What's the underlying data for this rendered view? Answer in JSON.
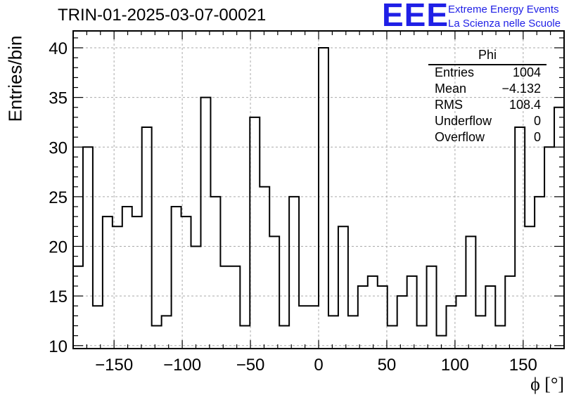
{
  "title": "TRIN-01-2025-03-07-00021",
  "logo": {
    "letters": "EEE",
    "line1": "Extreme Energy Events",
    "line2": "La Scienza nelle Scuole",
    "color": "#1f1fe6"
  },
  "stats_box": {
    "name": "Phi",
    "rows": [
      {
        "label": "Entries",
        "value": "1004"
      },
      {
        "label": "Mean",
        "value": "−4.132"
      },
      {
        "label": "RMS",
        "value": "108.4"
      },
      {
        "label": "Underflow",
        "value": "0"
      },
      {
        "label": "Overflow",
        "value": "0"
      }
    ]
  },
  "chart_data": {
    "type": "histogram",
    "title": "TRIN-01-2025-03-07-00021",
    "xlabel": "ϕ [°]",
    "ylabel": "Entries/bin",
    "xlim": [
      -180,
      180
    ],
    "ylim": [
      9.7,
      41.7
    ],
    "bin_width": 7.2,
    "bin_edges_start": -180,
    "values": [
      18,
      30,
      14,
      23,
      22,
      24,
      23,
      32,
      12,
      13,
      24,
      23,
      20,
      35,
      25,
      18,
      18,
      12,
      33,
      26,
      21,
      12,
      25,
      14,
      14,
      40,
      13,
      22,
      13,
      16,
      17,
      16,
      12,
      15,
      17,
      12,
      18,
      11,
      14,
      15,
      21,
      13,
      16,
      12,
      17,
      32,
      22,
      25,
      30,
      34
    ],
    "x_ticks": [
      -150,
      -100,
      -50,
      0,
      50,
      100,
      150
    ],
    "x_tick_labels": [
      "−150",
      "−100",
      "−50",
      "0",
      "50",
      "100",
      "150"
    ],
    "y_ticks": [
      10,
      15,
      20,
      25,
      30,
      35,
      40
    ],
    "y_tick_labels": [
      "10",
      "15",
      "20",
      "25",
      "30",
      "35",
      "40"
    ],
    "grid": true,
    "line_color": "#000000",
    "grid_color": "#aaaaaa"
  }
}
